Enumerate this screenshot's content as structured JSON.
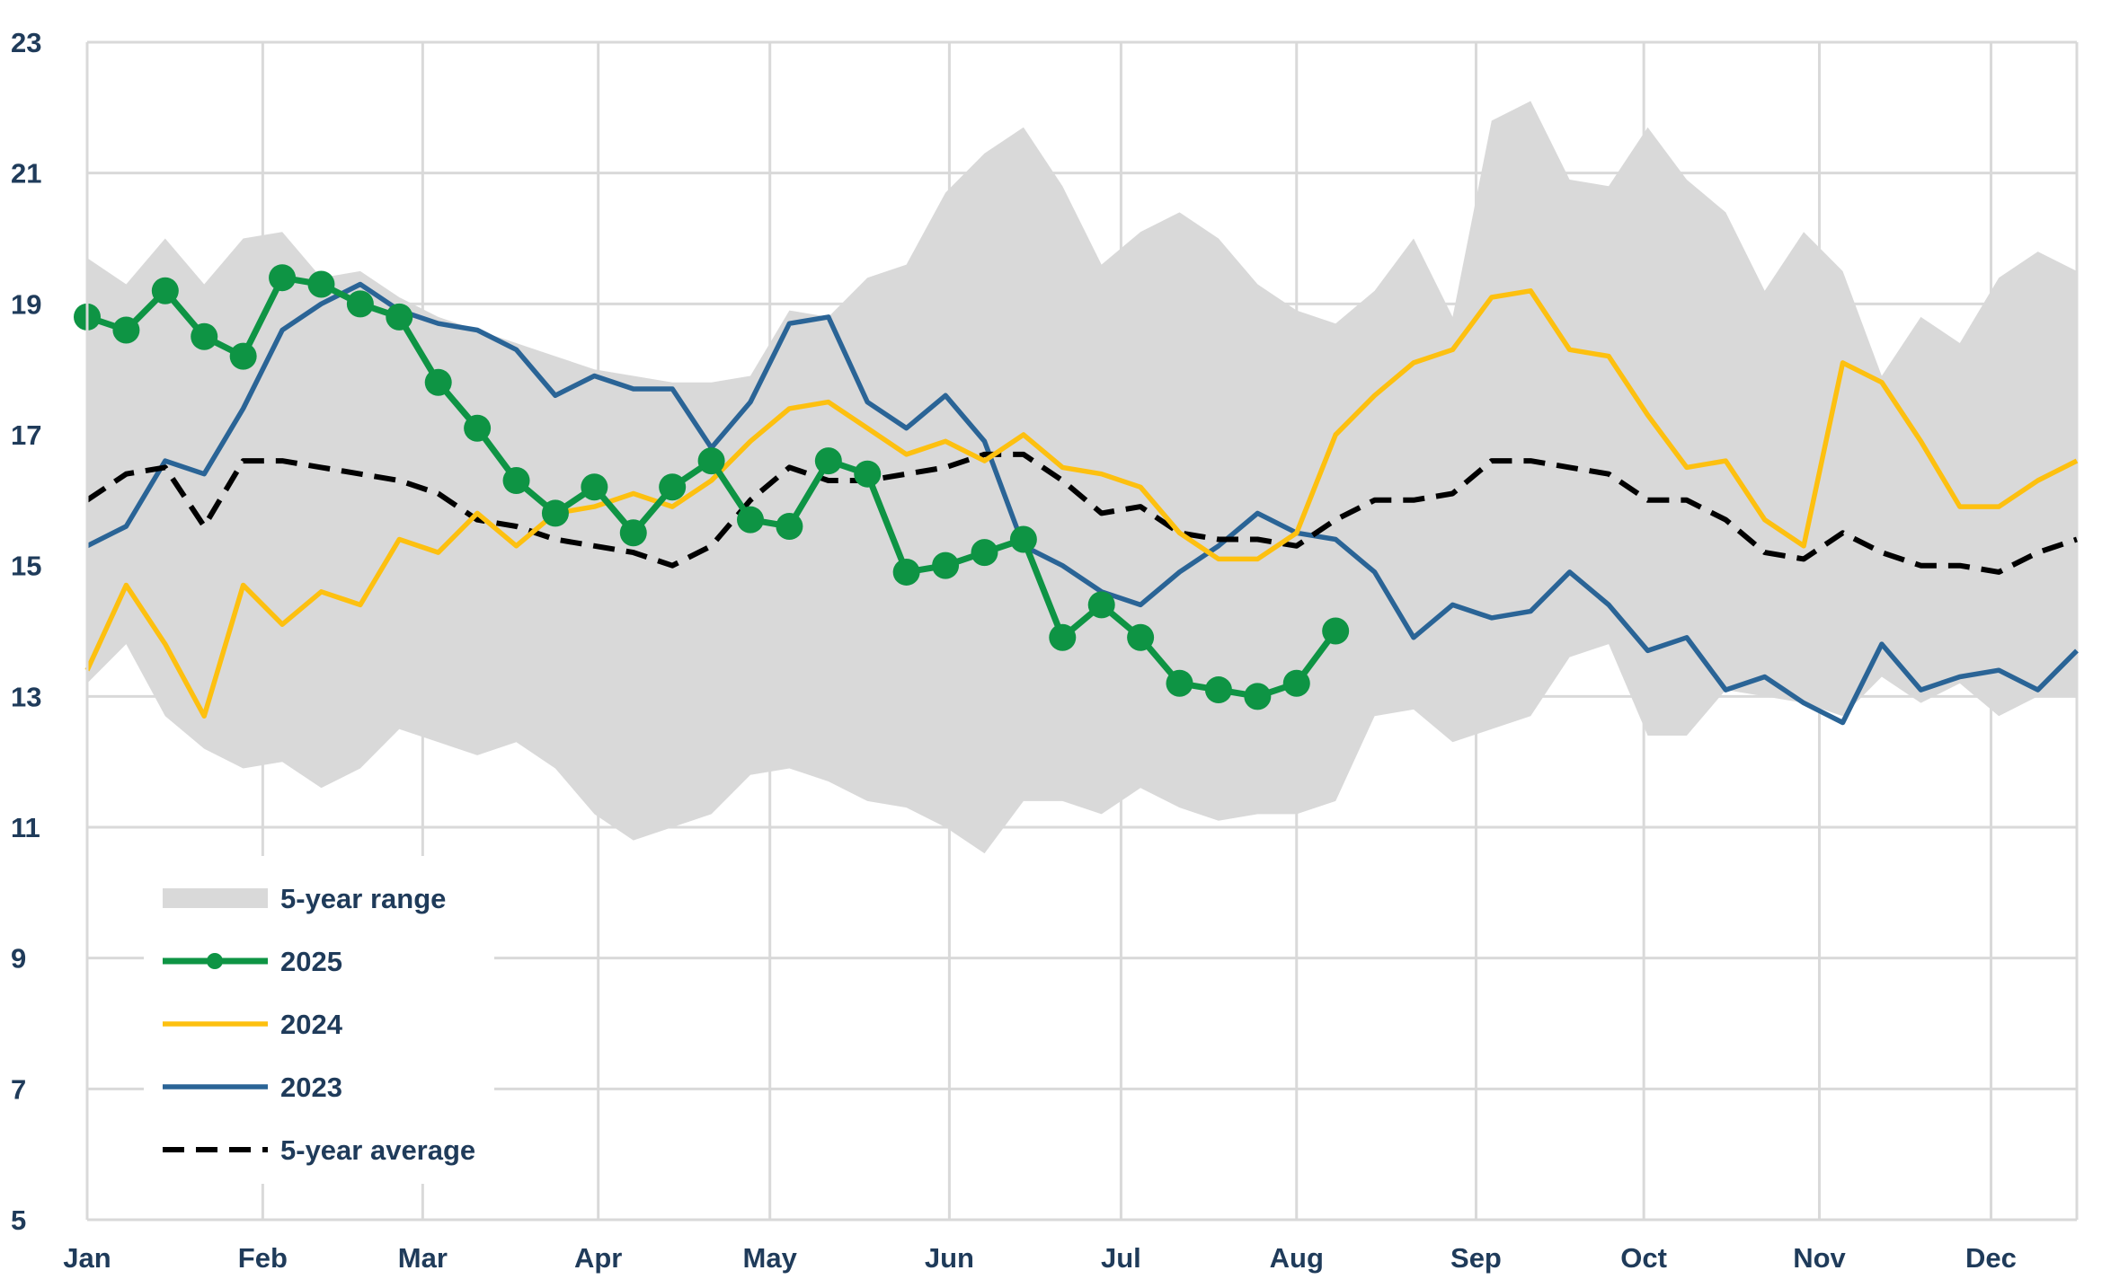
{
  "chart_data": {
    "type": "line",
    "title": "",
    "xlabel": "",
    "ylabel": "",
    "ylim": [
      5,
      23
    ],
    "y_ticks": [
      5,
      7,
      9,
      11,
      13,
      15,
      17,
      19,
      21,
      23
    ],
    "x_range_weeks": [
      1,
      52
    ],
    "months": [
      "Jan",
      "Feb",
      "Mar",
      "Apr",
      "May",
      "Jun",
      "Jul",
      "Aug",
      "Sep",
      "Oct",
      "Nov",
      "Dec"
    ],
    "month_week_positions": [
      1,
      5.5,
      9.6,
      14.1,
      18.5,
      23.1,
      27.5,
      32.0,
      36.6,
      40.9,
      45.4,
      49.8
    ],
    "grid": true,
    "legend_position": "bottom-left",
    "colors": {
      "range": "#d9d9d9",
      "y2025": "#0e9444",
      "y2024": "#fdc010",
      "y2023": "#2a6496",
      "average": "#000000",
      "grid": "#d9d9d9",
      "text": "#1f3b5a"
    },
    "legend": [
      {
        "key": "range",
        "label": "5-year range"
      },
      {
        "key": "y2025",
        "label": "2025"
      },
      {
        "key": "y2024",
        "label": "2024"
      },
      {
        "key": "y2023",
        "label": "2023"
      },
      {
        "key": "average",
        "label": "5-year average"
      }
    ],
    "range": {
      "name": "5-year range",
      "high": [
        19.7,
        19.3,
        20.0,
        19.3,
        20.0,
        20.1,
        19.4,
        19.5,
        19.1,
        18.8,
        18.6,
        18.4,
        18.2,
        18.0,
        17.9,
        17.8,
        17.8,
        17.9,
        18.9,
        18.8,
        19.4,
        19.6,
        20.7,
        21.3,
        21.7,
        20.8,
        19.6,
        20.1,
        20.4,
        20.0,
        19.3,
        18.9,
        18.7,
        19.2,
        20.0,
        18.8,
        21.8,
        22.1,
        20.9,
        20.8,
        21.7,
        20.9,
        20.4,
        19.2,
        20.1,
        19.5,
        17.9,
        18.8,
        18.4,
        19.4,
        19.8,
        19.5
      ],
      "low": [
        13.2,
        13.8,
        12.7,
        12.2,
        11.9,
        12.0,
        11.6,
        11.9,
        12.5,
        12.3,
        12.1,
        12.3,
        11.9,
        11.2,
        10.8,
        11.0,
        11.2,
        11.8,
        11.9,
        11.7,
        11.4,
        11.3,
        11.0,
        10.6,
        11.4,
        11.4,
        11.2,
        11.6,
        11.3,
        11.1,
        11.2,
        11.2,
        11.4,
        12.7,
        12.8,
        12.3,
        12.5,
        12.7,
        13.6,
        13.8,
        12.4,
        12.4,
        13.1,
        13.0,
        12.9,
        12.7,
        13.3,
        12.9,
        13.2,
        12.7,
        13.0,
        13.0
      ]
    },
    "series": [
      {
        "name": "2025",
        "key": "y2025",
        "values": [
          18.8,
          18.6,
          19.2,
          18.5,
          18.2,
          19.4,
          19.3,
          19.0,
          18.8,
          17.8,
          17.1,
          16.3,
          15.8,
          16.2,
          15.5,
          16.2,
          16.6,
          15.7,
          15.6,
          16.6,
          16.4,
          14.9,
          15.0,
          15.2,
          15.4,
          13.9,
          14.4,
          13.9,
          13.2,
          13.1,
          13.0,
          13.2,
          14.0
        ]
      },
      {
        "name": "2024",
        "key": "y2024",
        "values": [
          13.4,
          14.7,
          13.8,
          12.7,
          14.7,
          14.1,
          14.6,
          14.4,
          15.4,
          15.2,
          15.8,
          15.3,
          15.8,
          15.9,
          16.1,
          15.9,
          16.3,
          16.9,
          17.4,
          17.5,
          17.1,
          16.7,
          16.9,
          16.6,
          17.0,
          16.5,
          16.4,
          16.2,
          15.5,
          15.1,
          15.1,
          15.5,
          17.0,
          17.6,
          18.1,
          18.3,
          19.1,
          19.2,
          18.3,
          18.2,
          17.3,
          16.5,
          16.6,
          15.7,
          15.3,
          18.1,
          17.8,
          16.9,
          15.9,
          15.9,
          16.3,
          16.6
        ]
      },
      {
        "name": "2023",
        "key": "y2023",
        "values": [
          15.3,
          15.6,
          16.6,
          16.4,
          17.4,
          18.6,
          19.0,
          19.3,
          18.9,
          18.7,
          18.6,
          18.3,
          17.6,
          17.9,
          17.7,
          17.7,
          16.8,
          17.5,
          18.7,
          18.8,
          17.5,
          17.1,
          17.6,
          16.9,
          15.3,
          15.0,
          14.6,
          14.4,
          14.9,
          15.3,
          15.8,
          15.5,
          15.4,
          14.9,
          13.9,
          14.4,
          14.2,
          14.3,
          14.9,
          14.4,
          13.7,
          13.9,
          13.1,
          13.3,
          12.9,
          12.6,
          13.8,
          13.1,
          13.3,
          13.4,
          13.1,
          13.7
        ]
      },
      {
        "name": "5-year average",
        "key": "average",
        "values": [
          16.0,
          16.4,
          16.5,
          15.6,
          16.6,
          16.6,
          16.5,
          16.4,
          16.3,
          16.1,
          15.7,
          15.6,
          15.4,
          15.3,
          15.2,
          15.0,
          15.3,
          16.0,
          16.5,
          16.3,
          16.3,
          16.4,
          16.5,
          16.7,
          16.7,
          16.3,
          15.8,
          15.9,
          15.5,
          15.4,
          15.4,
          15.3,
          15.7,
          16.0,
          16.0,
          16.1,
          16.6,
          16.6,
          16.5,
          16.4,
          16.0,
          16.0,
          15.7,
          15.2,
          15.1,
          15.5,
          15.2,
          15.0,
          15.0,
          14.9,
          15.2,
          15.4
        ]
      }
    ]
  }
}
